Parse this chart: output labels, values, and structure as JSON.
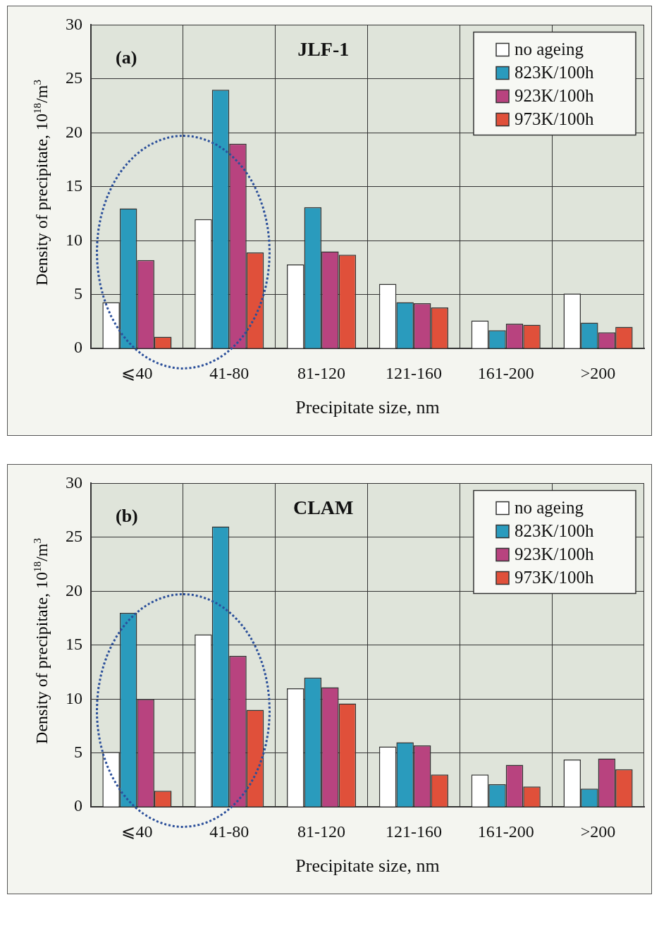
{
  "chart_data": [
    {
      "type": "bar",
      "title": "JLF-1",
      "annotations": [
        "(a)"
      ],
      "xlabel": "Precipitate size, nm",
      "ylabel": "Density of precipitate, 10$^{18}$/m$^{3}$",
      "categories": [
        "⩽40",
        "41-80",
        "81-120",
        "121-160",
        "161-200",
        ">200"
      ],
      "series": [
        {
          "name": "no ageing",
          "color": "#ffffff",
          "values": [
            4.3,
            12,
            7.8,
            6,
            2.6,
            5.1
          ]
        },
        {
          "name": "823K/100h",
          "color": "#2a9bbd",
          "values": [
            13,
            24,
            13.1,
            4.3,
            1.7,
            2.4
          ]
        },
        {
          "name": "923K/100h",
          "color": "#b8437f",
          "values": [
            8.2,
            19,
            9,
            4.2,
            2.3,
            1.5
          ]
        },
        {
          "name": "973K/100h",
          "color": "#e0503a",
          "values": [
            1.1,
            8.9,
            8.7,
            3.8,
            2.2,
            2
          ]
        }
      ],
      "ylim": [
        0,
        30
      ],
      "yticks": [
        0,
        5,
        10,
        15,
        20,
        25,
        30
      ],
      "grid": true,
      "legend": "top right"
    },
    {
      "type": "bar",
      "title": "CLAM",
      "annotations": [
        "(b)"
      ],
      "xlabel": "Precipitate size, nm",
      "ylabel": "Density of precipitate, 10$^{18}$/m$^{3}$",
      "categories": [
        "⩽40",
        "41-80",
        "81-120",
        "121-160",
        "161-200",
        ">200"
      ],
      "series": [
        {
          "name": "no ageing",
          "color": "#ffffff",
          "values": [
            5.1,
            16,
            11,
            5.6,
            3,
            4.4
          ]
        },
        {
          "name": "823K/100h",
          "color": "#2a9bbd",
          "values": [
            18,
            26,
            12,
            6,
            2.1,
            1.7
          ]
        },
        {
          "name": "923K/100h",
          "color": "#b8437f",
          "values": [
            10,
            14,
            11.1,
            5.7,
            3.9,
            4.5
          ]
        },
        {
          "name": "973K/100h",
          "color": "#e0503a",
          "values": [
            1.5,
            9,
            9.6,
            3,
            1.9,
            3.5
          ]
        }
      ],
      "ylim": [
        0,
        30
      ],
      "yticks": [
        0,
        5,
        10,
        15,
        20,
        25,
        30
      ],
      "grid": true,
      "legend": "top right"
    }
  ]
}
